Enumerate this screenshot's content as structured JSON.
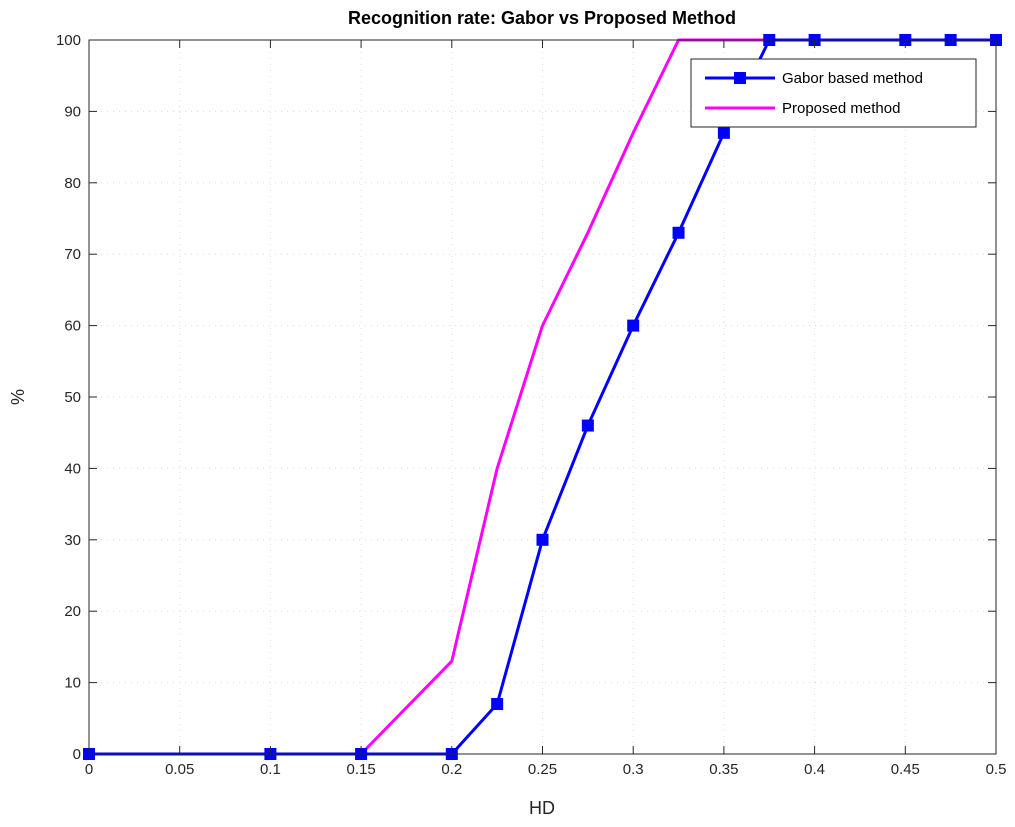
{
  "chart_data": {
    "type": "line",
    "title": "Recognition rate: Gabor vs Proposed Method",
    "xlabel": "HD",
    "ylabel": "%",
    "xlim": [
      0,
      0.5
    ],
    "ylim": [
      0,
      100
    ],
    "x_ticks": [
      "0",
      "0.05",
      "0.1",
      "0.15",
      "0.2",
      "0.25",
      "0.3",
      "0.35",
      "0.4",
      "0.45",
      "0.5"
    ],
    "x_tick_values": [
      0,
      0.05,
      0.1,
      0.15,
      0.2,
      0.25,
      0.3,
      0.35,
      0.4,
      0.45,
      0.5
    ],
    "y_ticks": [
      "0",
      "10",
      "20",
      "30",
      "40",
      "50",
      "60",
      "70",
      "80",
      "90",
      "100"
    ],
    "y_tick_values": [
      0,
      10,
      20,
      30,
      40,
      50,
      60,
      70,
      80,
      90,
      100
    ],
    "grid": true,
    "legend_position": "top-right",
    "series": [
      {
        "name": "Gabor based method",
        "color": "#0000ff",
        "marker": "square",
        "x": [
          0,
          0.1,
          0.15,
          0.2,
          0.225,
          0.25,
          0.275,
          0.3,
          0.325,
          0.35,
          0.375,
          0.4,
          0.45,
          0.475,
          0.5
        ],
        "y": [
          0,
          0,
          0,
          0,
          7,
          30,
          46,
          60,
          73,
          87,
          100,
          100,
          100,
          100,
          100
        ]
      },
      {
        "name": "Proposed method",
        "color": "#ff00ff",
        "marker": "none",
        "x": [
          0,
          0.15,
          0.2,
          0.225,
          0.25,
          0.275,
          0.3,
          0.325,
          0.5
        ],
        "y": [
          0,
          0,
          13,
          40,
          60,
          73,
          87,
          100,
          100
        ]
      }
    ]
  }
}
